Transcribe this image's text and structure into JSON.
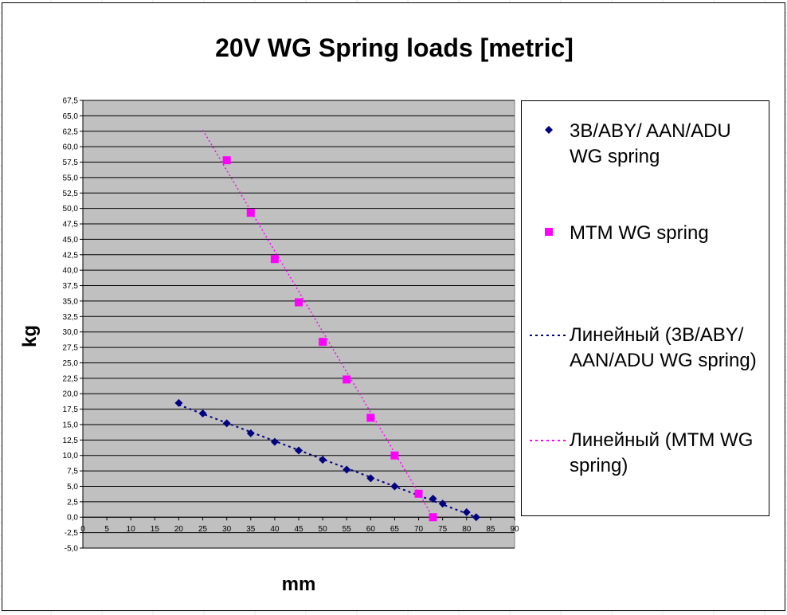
{
  "chart_data": {
    "type": "scatter",
    "title": "20V WG Spring loads [metric]",
    "xlabel": "mm",
    "ylabel": "kg",
    "xlim": [
      0,
      90
    ],
    "ylim": [
      -5,
      67.5
    ],
    "x_ticks": [
      "0",
      "5",
      "10",
      "15",
      "20",
      "25",
      "30",
      "35",
      "40",
      "45",
      "50",
      "55",
      "60",
      "65",
      "70",
      "75",
      "80",
      "85",
      "90"
    ],
    "y_ticks": [
      "-5,0",
      "-2,5",
      "0,0",
      "2,5",
      "5,0",
      "7,5",
      "10,0",
      "12,5",
      "15,0",
      "17,5",
      "20,0",
      "22,5",
      "25,0",
      "27,5",
      "30,0",
      "32,5",
      "35,0",
      "37,5",
      "40,0",
      "42,5",
      "45,0",
      "47,5",
      "50,0",
      "52,5",
      "55,0",
      "57,5",
      "60,0",
      "62,5",
      "65,0",
      "67,5"
    ],
    "grid": "horizontal",
    "plot_background": "#c0c0c0",
    "legend_position": "right",
    "series": [
      {
        "name": "3B/ABY/ AAN/ADU WG spring",
        "marker": "diamond",
        "color": "#000080",
        "x": [
          20,
          25,
          30,
          35,
          40,
          45,
          50,
          55,
          60,
          65,
          73,
          75,
          80,
          82
        ],
        "y": [
          18.5,
          16.8,
          15.2,
          13.6,
          12.2,
          10.8,
          9.3,
          7.7,
          6.3,
          5.0,
          3.0,
          2.2,
          0.8,
          0.0
        ]
      },
      {
        "name": "MTM WG spring",
        "marker": "square",
        "color": "#ff00ff",
        "x": [
          30,
          35,
          40,
          45,
          50,
          55,
          60,
          65,
          70,
          73
        ],
        "y": [
          57.8,
          49.3,
          41.8,
          34.8,
          28.4,
          22.3,
          16.1,
          10.0,
          3.8,
          0.0
        ]
      }
    ],
    "trendlines": [
      {
        "name": "Линейный (3B/ABY/ AAN/ADU WG spring)",
        "style": "dotted",
        "color": "#000080",
        "from": [
          20,
          18.2
        ],
        "to": [
          82,
          0.0
        ]
      },
      {
        "name": "Линейный (MTM WG spring)",
        "style": "dotted",
        "color": "#ff00ff",
        "from": [
          25,
          62.7
        ],
        "to": [
          73,
          0.0
        ]
      }
    ]
  }
}
